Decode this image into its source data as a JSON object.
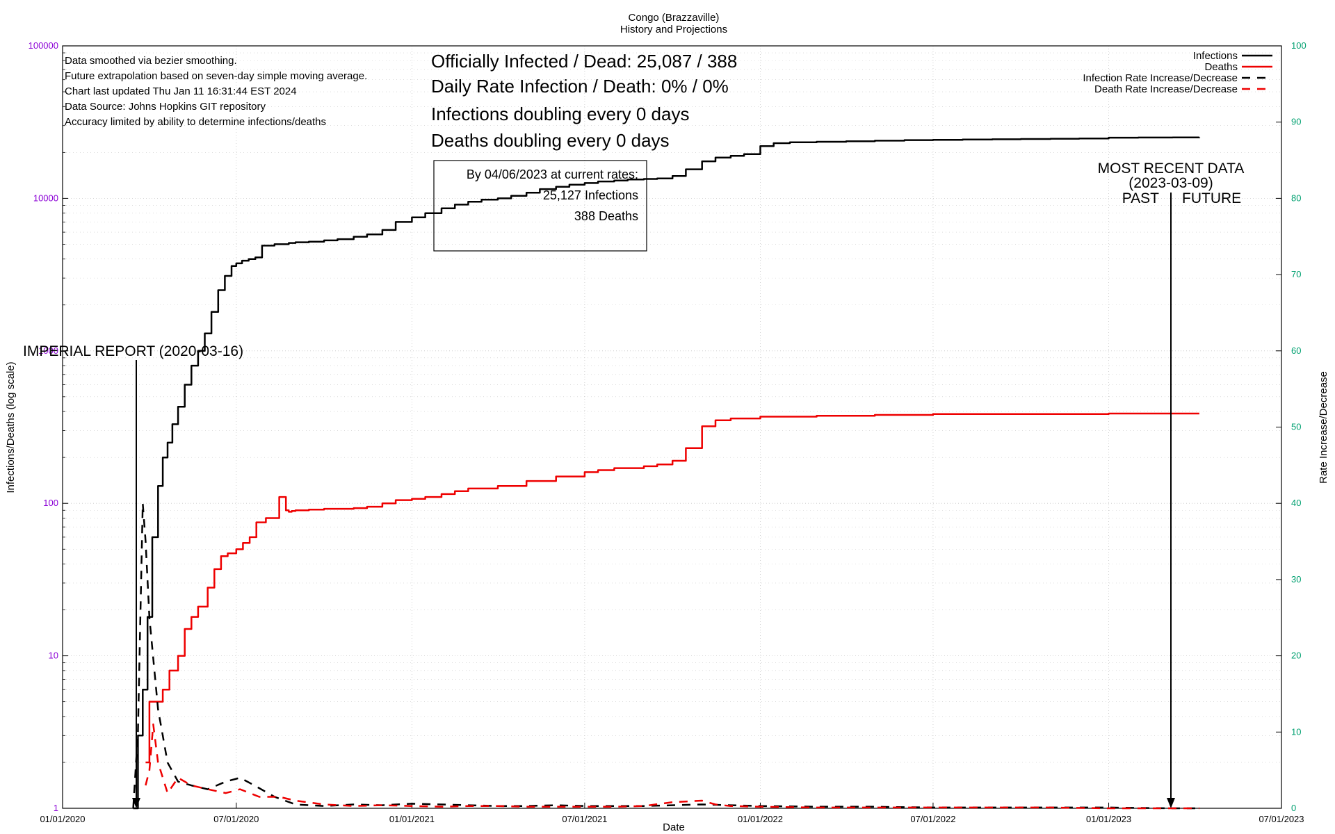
{
  "header": {
    "title": "Congo (Brazzaville)",
    "subtitle": "History and Projections"
  },
  "notes": [
    "Data smoothed via bezier smoothing.",
    "Future extrapolation based on seven-day simple moving average.",
    "Chart last updated Thu Jan 11 16:31:44 EST 2024",
    "Data Source: Johns Hopkins GIT repository",
    "Accuracy limited by ability to determine infections/deaths"
  ],
  "headline": {
    "line1": "Officially Infected / Dead:  25,087 / 388",
    "line2": "Daily Rate Infection / Death:  0% / 0%",
    "line3": "Infections doubling every 0 days",
    "line4": "Deaths doubling every 0 days"
  },
  "projection_box": {
    "line1": "By 04/06/2023 at current rates:",
    "line2": "25,127 Infections",
    "line3": "388 Deaths"
  },
  "annotations": {
    "imperial": "IMPERIAL REPORT (2020-03-16)",
    "recent_1": "MOST RECENT DATA",
    "recent_2": "(2023-03-09)",
    "recent_3": "PAST",
    "recent_4": "FUTURE"
  },
  "colors": {
    "infections": "#000000",
    "deaths": "#ee0000",
    "left_ticks": "#8b00d6",
    "right_ticks": "#00a070",
    "grid": "#c8c8c8"
  },
  "chart_data": {
    "type": "line",
    "title": "Congo (Brazzaville)",
    "subtitle": "History and Projections",
    "xlabel": "Date",
    "ylabel": "Infections/Deaths (log scale)",
    "y2label": "Rate Increase/Decrease",
    "xlim": [
      "2020-01-01",
      "2023-07-01"
    ],
    "ylim": [
      1,
      100000
    ],
    "yscale": "log",
    "y2lim": [
      0,
      100
    ],
    "grid": true,
    "legend_position": "top-right",
    "x_ticks": [
      "01/01/2020",
      "07/01/2020",
      "01/01/2021",
      "07/01/2021",
      "01/01/2022",
      "07/01/2022",
      "01/01/2023",
      "07/01/2023"
    ],
    "y_ticks": [
      "1",
      "10",
      "100",
      "1000",
      "10000",
      "100000"
    ],
    "y2_ticks": [
      "0",
      "10",
      "20",
      "30",
      "40",
      "50",
      "60",
      "70",
      "80",
      "90",
      "100"
    ],
    "series": [
      {
        "name": "Infections",
        "axis": "left",
        "style": "solid",
        "color": "#000000",
        "x": [
          "2020-03-15",
          "2020-03-20",
          "2020-03-25",
          "2020-03-30",
          "2020-04-04",
          "2020-04-10",
          "2020-04-15",
          "2020-04-20",
          "2020-04-25",
          "2020-05-01",
          "2020-05-08",
          "2020-05-15",
          "2020-05-22",
          "2020-05-29",
          "2020-06-05",
          "2020-06-12",
          "2020-06-19",
          "2020-06-26",
          "2020-07-01",
          "2020-07-07",
          "2020-07-14",
          "2020-07-21",
          "2020-07-28",
          "2020-08-10",
          "2020-08-25",
          "2020-09-01",
          "2020-09-15",
          "2020-10-01",
          "2020-10-15",
          "2020-11-01",
          "2020-11-15",
          "2020-12-01",
          "2020-12-15",
          "2021-01-01",
          "2021-01-15",
          "2021-02-01",
          "2021-02-15",
          "2021-03-01",
          "2021-03-15",
          "2021-04-01",
          "2021-04-15",
          "2021-05-01",
          "2021-05-15",
          "2021-06-01",
          "2021-06-15",
          "2021-07-01",
          "2021-07-15",
          "2021-08-01",
          "2021-08-15",
          "2021-09-01",
          "2021-09-15",
          "2021-10-01",
          "2021-10-15",
          "2021-11-01",
          "2021-11-15",
          "2021-12-01",
          "2021-12-15",
          "2022-01-01",
          "2022-01-15",
          "2022-02-01",
          "2022-03-01",
          "2022-04-01",
          "2022-05-01",
          "2022-06-01",
          "2022-07-01",
          "2022-08-01",
          "2022-09-01",
          "2022-10-01",
          "2022-11-01",
          "2022-12-01",
          "2023-01-01",
          "2023-02-01",
          "2023-03-09",
          "2023-04-06"
        ],
        "values": [
          1,
          3,
          6,
          18,
          60,
          130,
          200,
          250,
          330,
          430,
          600,
          800,
          1000,
          1300,
          1800,
          2500,
          3100,
          3600,
          3750,
          3900,
          4000,
          4100,
          4900,
          5000,
          5100,
          5150,
          5200,
          5300,
          5400,
          5600,
          5800,
          6200,
          7000,
          7500,
          8000,
          8600,
          9100,
          9500,
          9800,
          10000,
          10400,
          10900,
          11500,
          11900,
          12300,
          12600,
          12900,
          13100,
          13300,
          13400,
          13500,
          14000,
          15500,
          17500,
          18500,
          19000,
          19500,
          22000,
          23000,
          23300,
          23500,
          23700,
          23900,
          24100,
          24200,
          24300,
          24400,
          24500,
          24600,
          24700,
          25000,
          25050,
          25087,
          25127
        ]
      },
      {
        "name": "Deaths",
        "axis": "left",
        "style": "solid",
        "color": "#ee0000",
        "x": [
          "2020-03-28",
          "2020-04-01",
          "2020-04-08",
          "2020-04-15",
          "2020-04-22",
          "2020-05-01",
          "2020-05-08",
          "2020-05-15",
          "2020-05-22",
          "2020-06-01",
          "2020-06-08",
          "2020-06-15",
          "2020-06-22",
          "2020-07-01",
          "2020-07-08",
          "2020-07-15",
          "2020-07-22",
          "2020-08-01",
          "2020-08-08",
          "2020-08-15",
          "2020-08-22",
          "2020-08-25",
          "2020-08-28",
          "2020-09-01",
          "2020-09-15",
          "2020-10-01",
          "2020-11-01",
          "2020-11-15",
          "2020-12-01",
          "2020-12-15",
          "2021-01-01",
          "2021-01-15",
          "2021-02-01",
          "2021-02-15",
          "2021-03-01",
          "2021-04-01",
          "2021-05-01",
          "2021-06-01",
          "2021-07-01",
          "2021-07-15",
          "2021-08-01",
          "2021-09-01",
          "2021-09-15",
          "2021-10-01",
          "2021-10-15",
          "2021-11-01",
          "2021-11-15",
          "2021-12-01",
          "2022-01-01",
          "2022-03-01",
          "2022-05-01",
          "2022-07-01",
          "2023-01-01",
          "2023-03-09",
          "2023-04-06"
        ],
        "values": [
          2,
          5,
          5,
          6,
          8,
          10,
          15,
          18,
          21,
          28,
          37,
          45,
          47,
          50,
          55,
          60,
          75,
          80,
          80,
          110,
          90,
          88,
          89,
          90,
          91,
          92,
          93,
          95,
          100,
          105,
          107,
          110,
          115,
          120,
          125,
          130,
          140,
          150,
          160,
          165,
          170,
          175,
          180,
          190,
          230,
          320,
          350,
          360,
          370,
          375,
          380,
          385,
          388,
          388,
          388
        ]
      },
      {
        "name": "Infection Rate Increase/Decrease",
        "axis": "right",
        "style": "dashed",
        "color": "#000000",
        "x": [
          "2020-03-15",
          "2020-03-20",
          "2020-03-25",
          "2020-03-28",
          "2020-04-01",
          "2020-04-10",
          "2020-04-20",
          "2020-05-01",
          "2020-05-15",
          "2020-06-01",
          "2020-06-20",
          "2020-07-05",
          "2020-07-20",
          "2020-08-10",
          "2020-09-01",
          "2020-10-01",
          "2020-11-01",
          "2020-12-01",
          "2021-01-01",
          "2021-02-01",
          "2021-03-01",
          "2021-04-01",
          "2021-05-01",
          "2021-06-01",
          "2021-07-01",
          "2021-08-01",
          "2021-09-01",
          "2021-10-01",
          "2021-11-01",
          "2021-12-01",
          "2022-01-01",
          "2022-03-01",
          "2022-05-01",
          "2022-07-01",
          "2022-09-01",
          "2022-11-01",
          "2023-01-01",
          "2023-03-09",
          "2023-04-06"
        ],
        "values": [
          0,
          10,
          40,
          35,
          25,
          13,
          6,
          3.5,
          3,
          2.5,
          3.5,
          4,
          3,
          1.5,
          0.5,
          0.3,
          0.5,
          0.4,
          0.6,
          0.5,
          0.4,
          0.3,
          0.3,
          0.4,
          0.3,
          0.3,
          0.3,
          0.4,
          0.5,
          0.4,
          0.3,
          0.2,
          0.2,
          0.1,
          0.1,
          0.1,
          0.1,
          0,
          0
        ]
      },
      {
        "name": "Death Rate Increase/Decrease",
        "axis": "right",
        "style": "dashed",
        "color": "#ee0000",
        "x": [
          "2020-03-28",
          "2020-04-01",
          "2020-04-05",
          "2020-04-10",
          "2020-04-20",
          "2020-05-01",
          "2020-05-15",
          "2020-06-01",
          "2020-06-20",
          "2020-07-05",
          "2020-07-25",
          "2020-08-15",
          "2020-09-01",
          "2020-10-01",
          "2020-11-01",
          "2020-12-01",
          "2021-01-01",
          "2021-02-01",
          "2021-03-01",
          "2021-04-01",
          "2021-05-01",
          "2021-06-01",
          "2021-07-01",
          "2021-08-01",
          "2021-09-01",
          "2021-10-01",
          "2021-11-01",
          "2021-11-15",
          "2021-12-01",
          "2022-01-01",
          "2022-03-01",
          "2022-05-01",
          "2022-07-01",
          "2022-09-01",
          "2022-11-01",
          "2023-01-01",
          "2023-03-09",
          "2023-04-06"
        ],
        "values": [
          3,
          5,
          11,
          6,
          2,
          4,
          3,
          2.5,
          2,
          2.5,
          1.5,
          1.5,
          1,
          0.5,
          0.3,
          0.4,
          0.3,
          0.2,
          0.3,
          0.3,
          0.2,
          0.2,
          0.2,
          0.2,
          0.3,
          0.8,
          1.0,
          0.5,
          0.3,
          0.2,
          0.1,
          0.1,
          0.1,
          0.1,
          0.1,
          0,
          0,
          0
        ]
      }
    ]
  }
}
